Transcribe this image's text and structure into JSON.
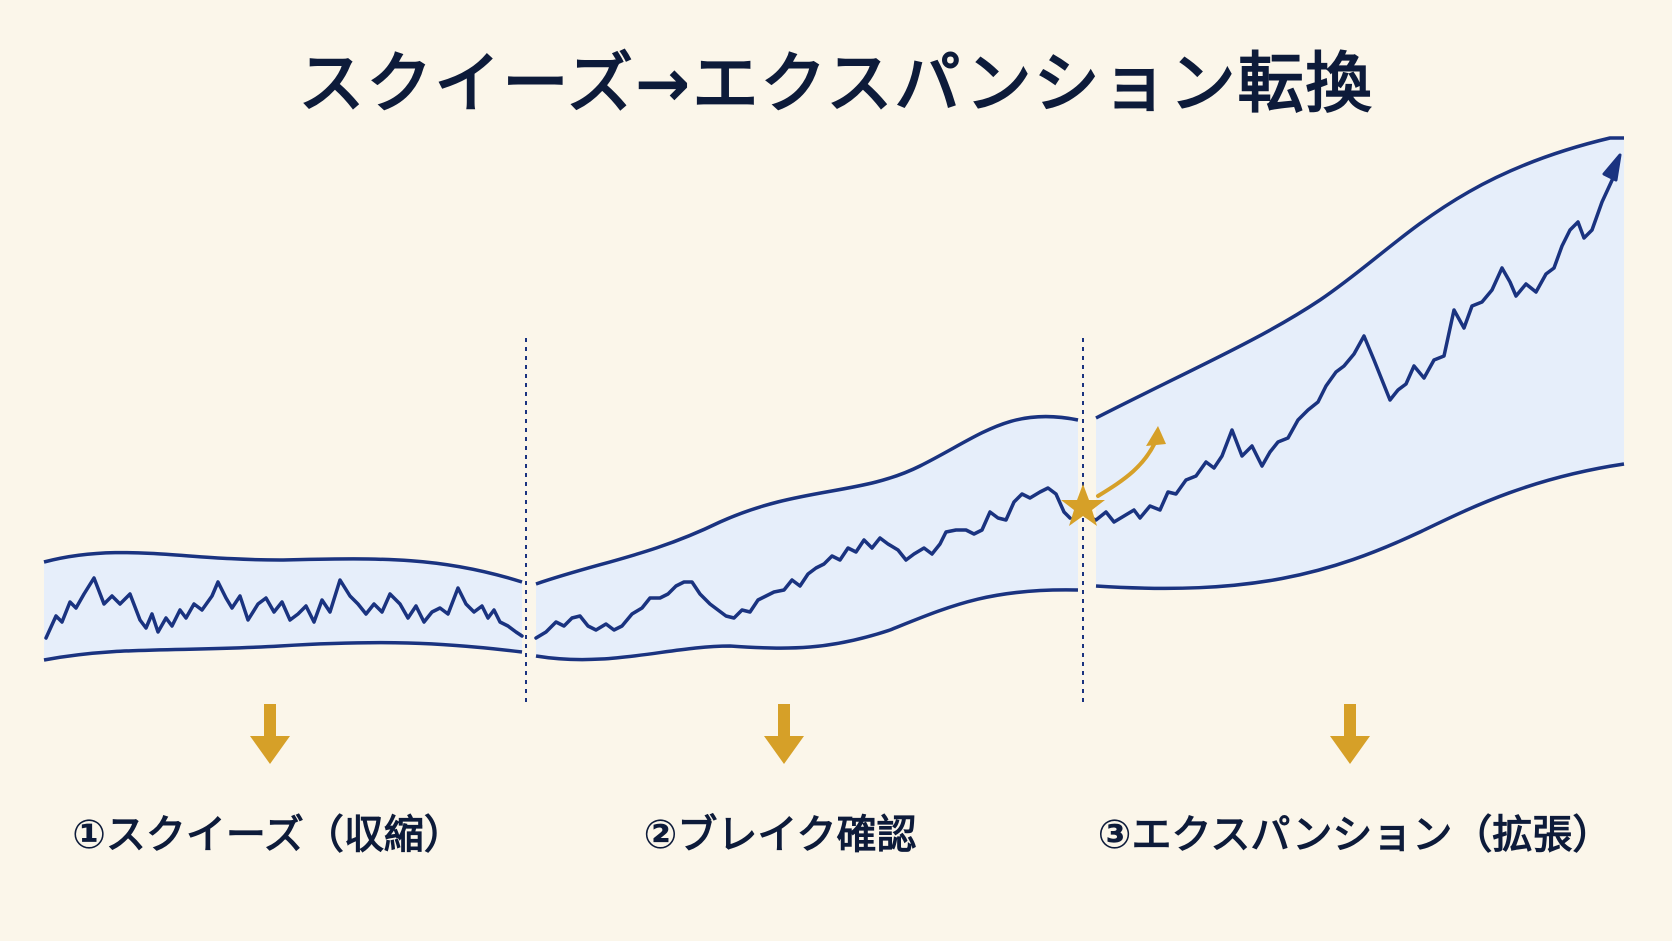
{
  "title": "スクイーズ→エクスパンション転換",
  "phases": [
    {
      "label": "①スクイーズ（収縮）"
    },
    {
      "label": "②ブレイク確認"
    },
    {
      "label": "③エクスパンション（拡張）"
    }
  ],
  "colors": {
    "background": "#fbf6ea",
    "band_fill": "#e6eefa",
    "line": "#1a3380",
    "accent": "#d6a028",
    "title": "#0d1b3a"
  },
  "icons": {
    "breakout_marker": "star-icon",
    "breakout_direction": "curved-arrow-up-icon",
    "phase_pointer": "down-arrow-icon",
    "trend_arrow": "arrow-head-icon"
  }
}
